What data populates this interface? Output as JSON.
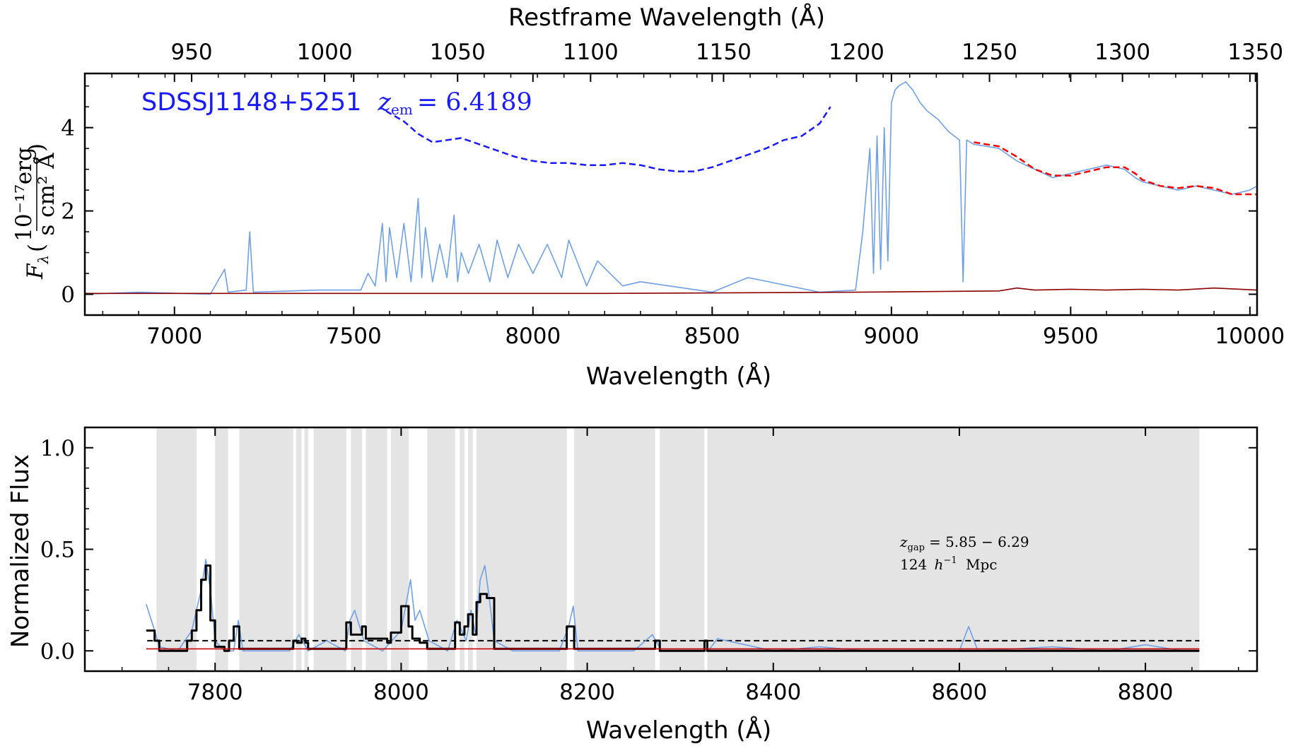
{
  "chart_data": [
    {
      "type": "line",
      "panel": "top",
      "xlabel": "Wavelength (Å)",
      "xlabel_top": "Restframe Wavelength (Å)",
      "ylabel": "F_λ (10^-17 erg / s cm² Å)",
      "ylabel_parts": {
        "symbol": "F",
        "sub": "λ",
        "num": "10⁻¹⁷erg",
        "den": "s cm² Å"
      },
      "xlim": [
        6750,
        10020
      ],
      "ylim": [
        -0.5,
        5.3
      ],
      "x_ticks": [
        "7000",
        "7500",
        "8000",
        "8500",
        "9000",
        "9500",
        "10000"
      ],
      "x_tick_values": [
        7000,
        7500,
        8000,
        8500,
        9000,
        9500,
        10000
      ],
      "top_ticks": [
        "950",
        "1000",
        "1050",
        "1100",
        "1150",
        "1200",
        "1250",
        "1300",
        "1350"
      ],
      "top_tick_values": [
        950,
        1000,
        1050,
        1100,
        1150,
        1200,
        1250,
        1300,
        1350
      ],
      "redshift_factor": 7.4189,
      "y_ticks": [
        "0",
        "2",
        "4"
      ],
      "y_tick_values": [
        0,
        2,
        4
      ],
      "label": {
        "name": "SDSSJ1148+5251",
        "z_text": "z",
        "z_sub": "em",
        "z_value": "= 6.4189"
      },
      "series": [
        {
          "role": "flux",
          "color": "#6fa0e6",
          "x": [
            6750,
            6900,
            7100,
            7140,
            7150,
            7200,
            7210,
            7220,
            7400,
            7520,
            7540,
            7560,
            7580,
            7590,
            7600,
            7620,
            7640,
            7660,
            7680,
            7690,
            7700,
            7720,
            7740,
            7760,
            7780,
            7790,
            7800,
            7820,
            7850,
            7880,
            7900,
            7930,
            7960,
            8000,
            8040,
            8080,
            8100,
            8150,
            8180,
            8250,
            8300,
            8500,
            8600,
            8800,
            8900,
            8920,
            8940,
            8950,
            8960,
            8970,
            8980,
            8990,
            9000,
            9010,
            9020,
            9040,
            9060,
            9080,
            9100,
            9130,
            9160,
            9190,
            9200,
            9210,
            9230,
            9300,
            9350,
            9400,
            9450,
            9500,
            9550,
            9600,
            9650,
            9680,
            9700,
            9750,
            9800,
            9850,
            9900,
            9950,
            10000,
            10020
          ],
          "y": [
            0.0,
            0.05,
            0.0,
            0.6,
            0.05,
            0.1,
            1.5,
            0.05,
            0.1,
            0.1,
            0.5,
            0.2,
            1.7,
            0.3,
            1.6,
            0.4,
            1.7,
            0.3,
            2.3,
            0.4,
            1.6,
            0.3,
            1.2,
            0.4,
            1.9,
            0.3,
            1.0,
            0.5,
            1.2,
            0.3,
            1.3,
            0.4,
            1.2,
            0.5,
            1.2,
            0.4,
            1.3,
            0.2,
            0.8,
            0.2,
            0.3,
            0.05,
            0.4,
            0.05,
            0.1,
            1.5,
            3.5,
            0.5,
            3.8,
            0.6,
            4.0,
            0.8,
            4.6,
            4.9,
            5.0,
            5.1,
            4.9,
            4.6,
            4.4,
            4.2,
            3.9,
            3.7,
            0.3,
            3.7,
            3.6,
            3.5,
            3.2,
            3.0,
            2.8,
            2.9,
            3.0,
            3.1,
            3.0,
            2.8,
            2.7,
            2.6,
            2.5,
            2.6,
            2.5,
            2.4,
            2.5,
            2.6
          ]
        },
        {
          "role": "error",
          "color": "#8b0000",
          "x": [
            6750,
            8200,
            8900,
            9300,
            9350,
            9400,
            9500,
            9600,
            9700,
            9800,
            9900,
            10020
          ],
          "y": [
            0.02,
            0.02,
            0.05,
            0.08,
            0.15,
            0.1,
            0.12,
            0.1,
            0.12,
            0.1,
            0.15,
            0.1
          ]
        },
        {
          "role": "continuum-fit",
          "style": "dashed",
          "color": "#ff0000",
          "x": [
            9230,
            9300,
            9350,
            9400,
            9450,
            9500,
            9550,
            9600,
            9650,
            9680,
            9700,
            9750,
            9800,
            9850,
            9900,
            9950,
            10020
          ],
          "y": [
            3.65,
            3.55,
            3.3,
            3.0,
            2.85,
            2.85,
            2.95,
            3.05,
            3.05,
            2.9,
            2.75,
            2.6,
            2.55,
            2.6,
            2.55,
            2.4,
            2.4
          ]
        },
        {
          "role": "extrapolated-continuum",
          "style": "dashed",
          "color": "#1a1aff",
          "x": [
            7590,
            7640,
            7680,
            7720,
            7760,
            7800,
            7850,
            7900,
            7950,
            8000,
            8050,
            8100,
            8150,
            8200,
            8250,
            8300,
            8350,
            8400,
            8450,
            8500,
            8550,
            8600,
            8650,
            8700,
            8750,
            8800,
            8830
          ],
          "y": [
            4.4,
            4.15,
            3.85,
            3.65,
            3.7,
            3.75,
            3.6,
            3.45,
            3.3,
            3.2,
            3.15,
            3.15,
            3.1,
            3.1,
            3.15,
            3.1,
            3.0,
            2.95,
            2.95,
            3.05,
            3.2,
            3.35,
            3.5,
            3.7,
            3.8,
            4.1,
            4.5
          ]
        }
      ]
    },
    {
      "type": "line",
      "panel": "bottom",
      "xlabel": "Wavelength (Å)",
      "ylabel": "Normalized Flux",
      "xlim": [
        7660,
        8920
      ],
      "ylim": [
        -0.1,
        1.1
      ],
      "x_ticks": [
        "7800",
        "8000",
        "8200",
        "8400",
        "8600",
        "8800"
      ],
      "x_tick_values": [
        7800,
        8000,
        8200,
        8400,
        8600,
        8800
      ],
      "y_ticks": [
        "0.0",
        "0.5",
        "1.0"
      ],
      "y_tick_values": [
        0.0,
        0.5,
        1.0
      ],
      "threshold": 0.05,
      "gap_annotation": {
        "z_symbol": "z",
        "z_sub": "gap",
        "z_text": "= 5.85 − 6.29",
        "size_text": "124",
        "h_symbol": "h",
        "h_exp": "−1",
        "unit": "Mpc"
      },
      "shaded_regions": [
        [
          7737,
          7780
        ],
        [
          7800,
          7814
        ],
        [
          7826,
          7884
        ],
        [
          7887,
          7893
        ],
        [
          7896,
          7900
        ],
        [
          7906,
          7941
        ],
        [
          7946,
          7958
        ],
        [
          7962,
          7985
        ],
        [
          7989,
          8008
        ],
        [
          8028,
          8058
        ],
        [
          8063,
          8068
        ],
        [
          8072,
          8077
        ],
        [
          8081,
          8100
        ],
        [
          8100,
          8178
        ],
        [
          8186,
          8273
        ],
        [
          8278,
          8326
        ],
        [
          8329,
          8858
        ]
      ],
      "series": [
        {
          "role": "flux",
          "color": "#6fa0e6",
          "x": [
            7726,
            7735,
            7740,
            7760,
            7775,
            7785,
            7790,
            7795,
            7800,
            7810,
            7820,
            7825,
            7830,
            7880,
            7890,
            7900,
            7920,
            7940,
            7945,
            7950,
            7960,
            7980,
            8000,
            8010,
            8015,
            8020,
            8030,
            8050,
            8060,
            8070,
            8075,
            8080,
            8085,
            8090,
            8095,
            8100,
            8120,
            8170,
            8180,
            8185,
            8190,
            8250,
            8270,
            8280,
            8330,
            8340,
            8400,
            8450,
            8500,
            8600,
            8610,
            8620,
            8700,
            8760,
            8800,
            8840,
            8858
          ],
          "y": [
            0.23,
            0.1,
            0.02,
            0.0,
            0.1,
            0.3,
            0.45,
            0.3,
            0.05,
            0.0,
            0.0,
            0.15,
            0.0,
            0.0,
            0.08,
            0.0,
            0.05,
            0.0,
            0.15,
            0.2,
            0.05,
            0.0,
            0.1,
            0.35,
            0.15,
            0.2,
            0.05,
            0.0,
            0.15,
            0.05,
            0.2,
            0.08,
            0.35,
            0.42,
            0.25,
            0.05,
            0.0,
            0.0,
            0.12,
            0.22,
            0.0,
            0.0,
            0.08,
            0.0,
            0.0,
            0.06,
            0.0,
            0.02,
            0.0,
            0.0,
            0.12,
            0.0,
            0.02,
            0.0,
            0.03,
            0.0,
            0.0
          ]
        },
        {
          "role": "binned-flux",
          "style": "step",
          "color": "#000000",
          "x": [
            7726,
            7735,
            7740,
            7770,
            7775,
            7780,
            7785,
            7790,
            7795,
            7800,
            7810,
            7815,
            7820,
            7826,
            7884,
            7888,
            7893,
            7897,
            7900,
            7906,
            7941,
            7946,
            7958,
            7962,
            7985,
            7989,
            8000,
            8008,
            8012,
            8020,
            8028,
            8058,
            8063,
            8068,
            8072,
            8077,
            8081,
            8085,
            8092,
            8100,
            8178,
            8186,
            8273,
            8278,
            8326,
            8329,
            8858
          ],
          "y": [
            0.1,
            0.05,
            0.0,
            0.05,
            0.1,
            0.2,
            0.35,
            0.42,
            0.15,
            0.02,
            0.0,
            0.05,
            0.12,
            0.01,
            0.05,
            0.04,
            0.06,
            0.04,
            0.01,
            0.01,
            0.14,
            0.08,
            0.12,
            0.06,
            0.04,
            0.09,
            0.22,
            0.12,
            0.06,
            0.04,
            0.01,
            0.14,
            0.08,
            0.12,
            0.18,
            0.08,
            0.24,
            0.28,
            0.26,
            0.01,
            0.12,
            0.01,
            0.05,
            0.0,
            0.05,
            0.0,
            0.0
          ]
        },
        {
          "role": "error",
          "color": "#cc0000",
          "x": [
            7726,
            8000,
            8300,
            8600,
            8858
          ],
          "y": [
            0.01,
            0.01,
            0.01,
            0.01,
            0.01
          ]
        }
      ]
    }
  ]
}
